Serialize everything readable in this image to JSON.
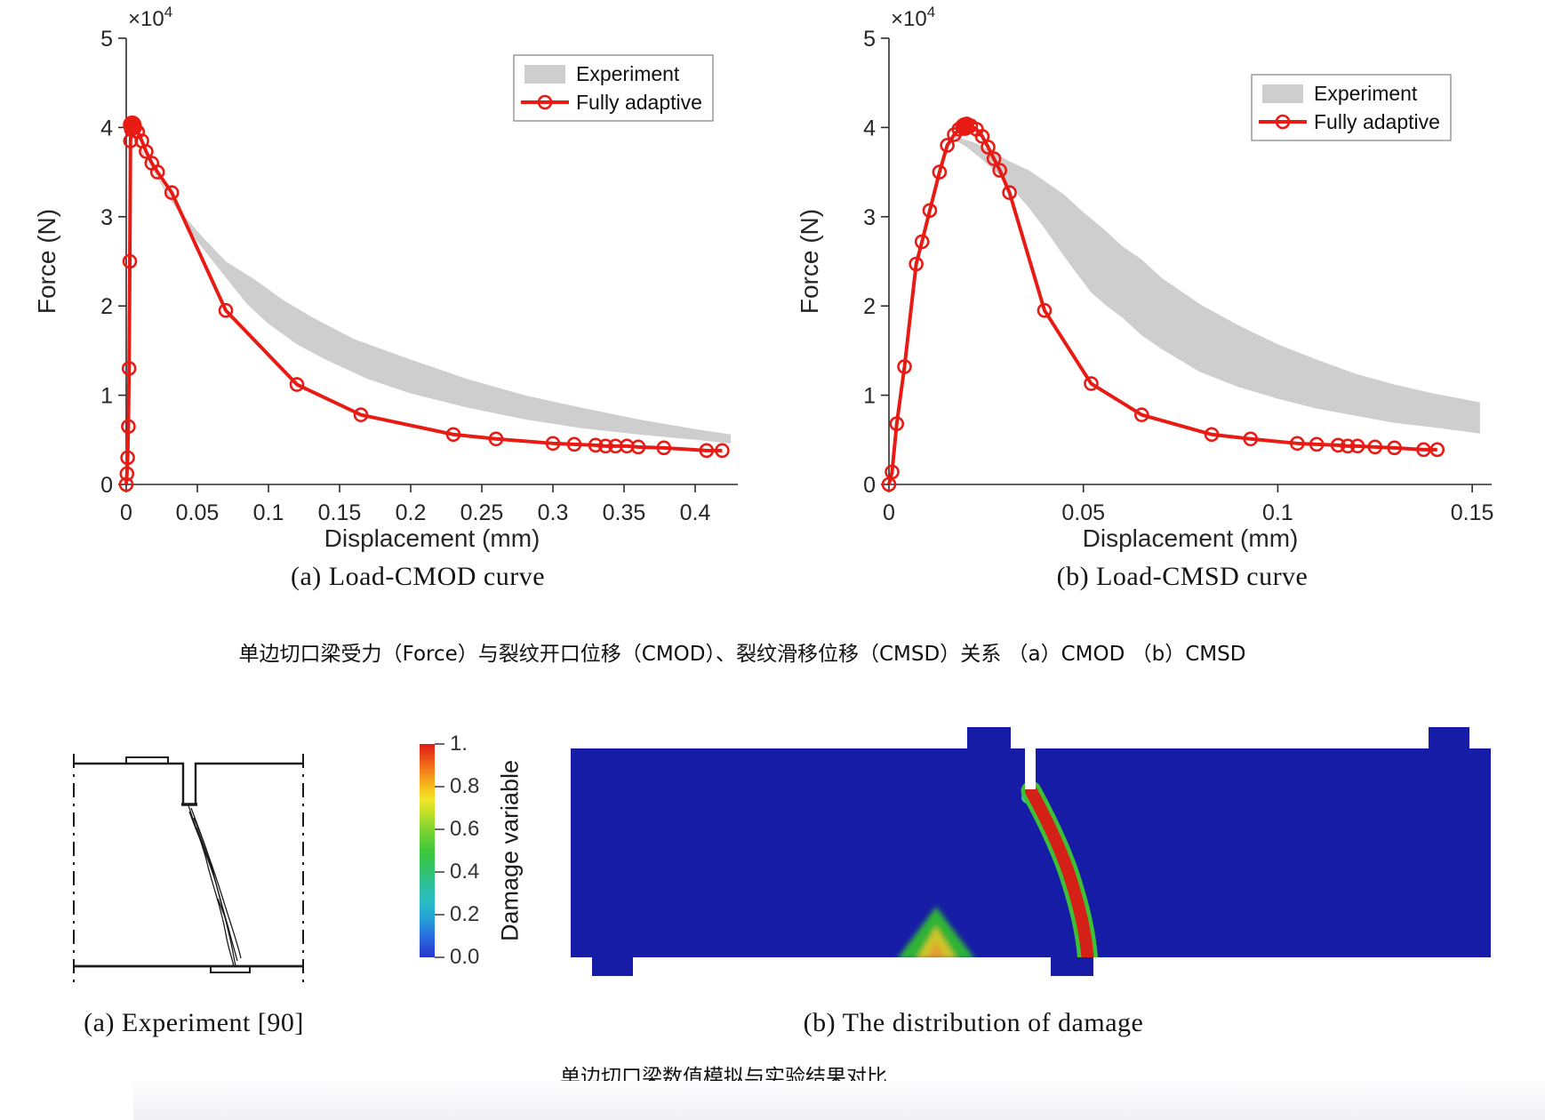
{
  "figure1": {
    "caption_a": "(a) Load-CMOD curve",
    "caption_b": "(b) Load-CMSD curve",
    "caption_zh": "单边切口梁受力（Force）与裂纹开口位移（CMOD）、裂纹滑移位移（CMSD）关系 （a）CMOD （b）CMSD"
  },
  "figure2": {
    "caption_a": "(a) Experiment [90]",
    "caption_b": "(b) The distribution of damage",
    "caption_zh": "单边切口梁数值模拟与实验结果对比"
  },
  "colorbar": {
    "label": "Damage variable",
    "ticks": [
      "1.",
      "0.8",
      "0.6",
      "0.4",
      "0.2",
      "0.0"
    ],
    "gradient": [
      [
        0,
        "#dd1c15"
      ],
      [
        8,
        "#ee5a18"
      ],
      [
        14,
        "#f58c1a"
      ],
      [
        20,
        "#f7bc1c"
      ],
      [
        26,
        "#f2e428"
      ],
      [
        32,
        "#c2e229"
      ],
      [
        40,
        "#7ed32f"
      ],
      [
        50,
        "#3ec83a"
      ],
      [
        58,
        "#33c464"
      ],
      [
        66,
        "#2cc09a"
      ],
      [
        74,
        "#28bcc4"
      ],
      [
        82,
        "#25a0d8"
      ],
      [
        90,
        "#2a6ee0"
      ],
      [
        100,
        "#2336cc"
      ]
    ]
  },
  "colors": {
    "line_red": "#e81b14",
    "band_gray": "#cecece",
    "beam_blue": "#171ca6",
    "crack_red": "#d52017",
    "crack_edge_green": "#3cc136",
    "axis": "#2b2b2b"
  },
  "chart_data": [
    {
      "type": "line",
      "title": "(a) Load-CMOD curve",
      "xlabel": "Displacement (mm)",
      "ylabel": "Force (N)",
      "y_exponent_base": "×10",
      "y_exponent_sup": "4",
      "xlim": [
        0,
        0.43
      ],
      "ylim": [
        0,
        5
      ],
      "xticks": [
        0,
        0.05,
        0.1,
        0.15,
        0.2,
        0.25,
        0.3,
        0.35,
        0.4
      ],
      "xtick_labels": [
        "0",
        "0.05",
        "0.1",
        "0.15",
        "0.2",
        "0.25",
        "0.3",
        "0.35",
        "0.4"
      ],
      "yticks": [
        0,
        1,
        2,
        3,
        4,
        5
      ],
      "ytick_labels": [
        "0",
        "1",
        "2",
        "3",
        "4",
        "5"
      ],
      "legend": [
        {
          "label": "Experiment",
          "swatch": "band"
        },
        {
          "label": "Fully adaptive",
          "swatch": "line-marker"
        }
      ],
      "band_upper": [
        [
          0.004,
          3.98
        ],
        [
          0.008,
          3.85
        ],
        [
          0.015,
          3.62
        ],
        [
          0.025,
          3.38
        ],
        [
          0.04,
          3.02
        ],
        [
          0.055,
          2.75
        ],
        [
          0.07,
          2.5
        ],
        [
          0.09,
          2.3
        ],
        [
          0.11,
          2.07
        ],
        [
          0.13,
          1.88
        ],
        [
          0.16,
          1.63
        ],
        [
          0.2,
          1.4
        ],
        [
          0.24,
          1.18
        ],
        [
          0.28,
          1.0
        ],
        [
          0.32,
          0.86
        ],
        [
          0.36,
          0.73
        ],
        [
          0.4,
          0.62
        ],
        [
          0.425,
          0.56
        ]
      ],
      "band_lower": [
        [
          0.425,
          0.46
        ],
        [
          0.4,
          0.5
        ],
        [
          0.36,
          0.56
        ],
        [
          0.32,
          0.63
        ],
        [
          0.28,
          0.73
        ],
        [
          0.24,
          0.86
        ],
        [
          0.2,
          1.02
        ],
        [
          0.17,
          1.18
        ],
        [
          0.14,
          1.4
        ],
        [
          0.12,
          1.57
        ],
        [
          0.1,
          1.8
        ],
        [
          0.085,
          2.02
        ],
        [
          0.07,
          2.32
        ],
        [
          0.06,
          2.52
        ],
        [
          0.05,
          2.72
        ],
        [
          0.04,
          2.97
        ],
        [
          0.03,
          3.22
        ],
        [
          0.02,
          3.48
        ],
        [
          0.012,
          3.68
        ],
        [
          0.006,
          3.88
        ],
        [
          0.004,
          3.96
        ]
      ],
      "line": [
        [
          0,
          0
        ],
        [
          0.0005,
          0.12
        ],
        [
          0.001,
          0.3
        ],
        [
          0.0015,
          0.65
        ],
        [
          0.002,
          1.3
        ],
        [
          0.0025,
          2.5
        ],
        [
          0.003,
          3.85
        ],
        [
          0.0035,
          3.98
        ],
        [
          0.004,
          4.03
        ],
        [
          0.0045,
          4.05
        ],
        [
          0.005,
          4.02
        ],
        [
          0.006,
          4.0
        ],
        [
          0.008,
          3.95
        ],
        [
          0.011,
          3.85
        ],
        [
          0.014,
          3.73
        ],
        [
          0.018,
          3.6
        ],
        [
          0.022,
          3.5
        ],
        [
          0.032,
          3.27
        ],
        [
          0.07,
          1.95
        ],
        [
          0.12,
          1.12
        ],
        [
          0.165,
          0.78
        ],
        [
          0.23,
          0.56
        ],
        [
          0.26,
          0.51
        ],
        [
          0.3,
          0.46
        ],
        [
          0.315,
          0.45
        ],
        [
          0.33,
          0.44
        ],
        [
          0.337,
          0.43
        ],
        [
          0.344,
          0.43
        ],
        [
          0.352,
          0.43
        ],
        [
          0.36,
          0.42
        ],
        [
          0.378,
          0.41
        ],
        [
          0.408,
          0.38
        ],
        [
          0.419,
          0.38
        ]
      ],
      "peak": [
        0.0042,
        4.03
      ]
    },
    {
      "type": "line",
      "title": "(b) Load-CMSD curve",
      "xlabel": "Displacement (mm)",
      "ylabel": "Force (N)",
      "y_exponent_base": "×10",
      "y_exponent_sup": "4",
      "xlim": [
        0,
        0.155
      ],
      "ylim": [
        0,
        5
      ],
      "xticks": [
        0,
        0.05,
        0.1,
        0.15
      ],
      "xtick_labels": [
        "0",
        "0.05",
        "0.1",
        "0.15"
      ],
      "yticks": [
        0,
        1,
        2,
        3,
        4,
        5
      ],
      "ytick_labels": [
        "0",
        "1",
        "2",
        "3",
        "4",
        "5"
      ],
      "legend": [
        {
          "label": "Experiment",
          "swatch": "band"
        },
        {
          "label": "Fully adaptive",
          "swatch": "line-marker"
        }
      ],
      "band_upper": [
        [
          0.017,
          3.9
        ],
        [
          0.022,
          3.83
        ],
        [
          0.027,
          3.72
        ],
        [
          0.031,
          3.62
        ],
        [
          0.036,
          3.52
        ],
        [
          0.04,
          3.4
        ],
        [
          0.045,
          3.25
        ],
        [
          0.05,
          3.05
        ],
        [
          0.055,
          2.87
        ],
        [
          0.06,
          2.67
        ],
        [
          0.065,
          2.52
        ],
        [
          0.07,
          2.32
        ],
        [
          0.08,
          2.02
        ],
        [
          0.09,
          1.78
        ],
        [
          0.1,
          1.57
        ],
        [
          0.11,
          1.4
        ],
        [
          0.12,
          1.24
        ],
        [
          0.13,
          1.12
        ],
        [
          0.14,
          1.02
        ],
        [
          0.152,
          0.92
        ]
      ],
      "band_lower": [
        [
          0.152,
          0.57
        ],
        [
          0.14,
          0.64
        ],
        [
          0.13,
          0.69
        ],
        [
          0.12,
          0.77
        ],
        [
          0.11,
          0.85
        ],
        [
          0.1,
          0.96
        ],
        [
          0.09,
          1.09
        ],
        [
          0.08,
          1.26
        ],
        [
          0.07,
          1.52
        ],
        [
          0.065,
          1.67
        ],
        [
          0.06,
          1.87
        ],
        [
          0.056,
          2.0
        ],
        [
          0.052,
          2.15
        ],
        [
          0.048,
          2.38
        ],
        [
          0.044,
          2.62
        ],
        [
          0.04,
          2.87
        ],
        [
          0.036,
          3.1
        ],
        [
          0.032,
          3.3
        ],
        [
          0.028,
          3.48
        ],
        [
          0.024,
          3.64
        ],
        [
          0.02,
          3.78
        ],
        [
          0.017,
          3.86
        ]
      ],
      "line": [
        [
          0,
          0
        ],
        [
          0.0008,
          0.14
        ],
        [
          0.002,
          0.68
        ],
        [
          0.004,
          1.32
        ],
        [
          0.007,
          2.47
        ],
        [
          0.0085,
          2.72
        ],
        [
          0.0105,
          3.07
        ],
        [
          0.013,
          3.5
        ],
        [
          0.015,
          3.8
        ],
        [
          0.0168,
          3.92
        ],
        [
          0.018,
          3.98
        ],
        [
          0.019,
          4.02
        ],
        [
          0.02,
          4.04
        ],
        [
          0.021,
          4.02
        ],
        [
          0.0225,
          3.98
        ],
        [
          0.024,
          3.9
        ],
        [
          0.0255,
          3.78
        ],
        [
          0.027,
          3.65
        ],
        [
          0.0285,
          3.52
        ],
        [
          0.031,
          3.27
        ],
        [
          0.04,
          1.95
        ],
        [
          0.052,
          1.13
        ],
        [
          0.065,
          0.78
        ],
        [
          0.083,
          0.56
        ],
        [
          0.093,
          0.51
        ],
        [
          0.105,
          0.46
        ],
        [
          0.11,
          0.45
        ],
        [
          0.1155,
          0.44
        ],
        [
          0.118,
          0.43
        ],
        [
          0.1205,
          0.43
        ],
        [
          0.125,
          0.42
        ],
        [
          0.13,
          0.41
        ],
        [
          0.1375,
          0.39
        ],
        [
          0.141,
          0.39
        ]
      ],
      "peak": [
        0.0195,
        4.01
      ]
    }
  ]
}
